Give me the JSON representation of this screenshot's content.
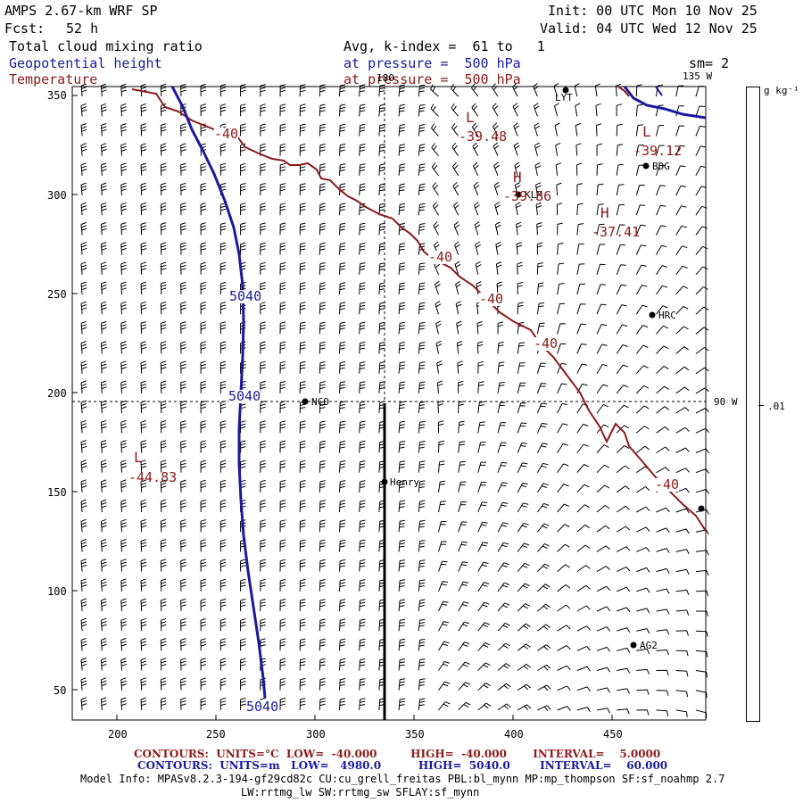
{
  "header": {
    "model": "AMPS 2.67-km WRF SP",
    "forecast_label": "Fcst:",
    "forecast_hours": "52 h",
    "init": "Init: 00 UTC Mon 10 Nov 25",
    "valid": "Valid: 04 UTC Wed 12 Nov 25",
    "field1": "Total cloud mixing ratio",
    "field2": "Geopotential height",
    "field3": "Temperature",
    "avg_line": "Avg, k-index =  61 to   1",
    "pressure1": "at pressure =  500 hPa",
    "pressure2": "at pressure =  500 hPa",
    "sm": "sm= 2"
  },
  "colorbar": {
    "units": "g kg⁻¹",
    "tick": ".01"
  },
  "grid_labels": {
    "lon_180": "180",
    "lon_135w": "135 W",
    "lon_90w": "90 W"
  },
  "axes": {
    "x_ticks": [
      "200",
      "250",
      "300",
      "350",
      "400",
      "450"
    ],
    "y_ticks": [
      "350",
      "300",
      "250",
      "200",
      "150",
      "100",
      "50"
    ]
  },
  "stations": [
    {
      "name": "LYT",
      "label": "LYT"
    },
    {
      "name": "BDG",
      "label": "BDG"
    },
    {
      "name": "KLM",
      "label": "KLM"
    },
    {
      "name": "HRC",
      "label": "HRC"
    },
    {
      "name": "NCO",
      "label": "NCO"
    },
    {
      "name": "Henry",
      "label": "Henry"
    },
    {
      "name": "AG2",
      "label": "AG2"
    },
    {
      "name": "unnamed",
      "label": ""
    }
  ],
  "contour_labels": {
    "temperature": [
      "-40",
      "-40",
      "-40",
      "-40",
      "-40"
    ],
    "height": [
      "5040",
      "5040",
      "5040"
    ],
    "extrema": [
      {
        "type": "L",
        "value": "-39.48"
      },
      {
        "type": "L",
        "value": "-39.12"
      },
      {
        "type": "H",
        "value": "-39.86"
      },
      {
        "type": "H",
        "value": "-37.41"
      },
      {
        "type": "L",
        "value": "-44.83"
      }
    ]
  },
  "footer": {
    "temp_contours": "CONTOURS:  UNITS=°C  LOW=  -40.000         HIGH=  -40.000       INTERVAL=    5.0000",
    "height_contours": "CONTOURS:  UNITS=m   LOW=   4980.0          HIGH=  5040.0        INTERVAL=    60.000",
    "model_info1": "Model Info: MPASv8.2.3-194-gf29cd82c CU:cu_grell_freitas PBL:bl_mynn MP:mp_thompson SF:sf_noahmp 2.7",
    "model_info2": "LW:rrtmg_lw SW:rrtmg_sw SFLAY:sf_mynn"
  },
  "colors": {
    "temperature": "#8b1a1a",
    "height": "#1a1a9c",
    "barb": "#000000"
  }
}
